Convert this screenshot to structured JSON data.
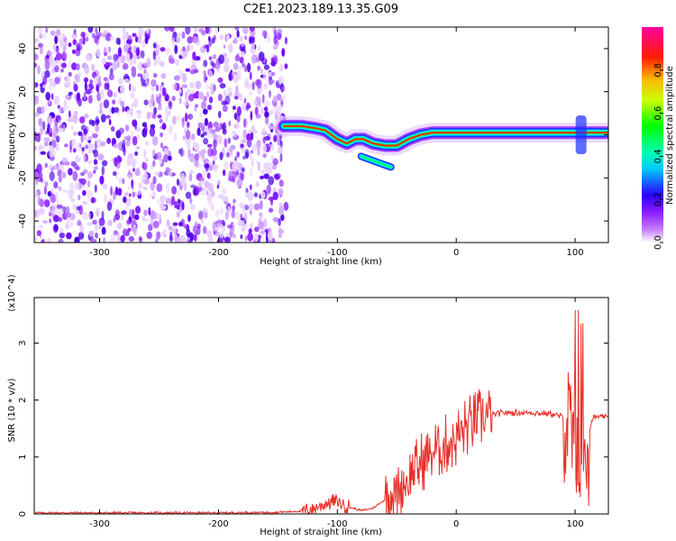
{
  "title": "C2E1.2023.189.13.35.G09",
  "chart_data": [
    {
      "type": "heatmap",
      "xlabel": "Height of straight line (km)",
      "ylabel": "Frequency (Hz)",
      "xlim": [
        -355,
        128
      ],
      "ylim": [
        -50,
        50
      ],
      "x_ticks": [
        -300,
        -200,
        -100,
        0,
        100
      ],
      "y_ticks": [
        -40,
        -20,
        0,
        20,
        40
      ],
      "colorbar": {
        "label": "Normalized spectral amplitude",
        "range": [
          0,
          1
        ],
        "ticks": [
          0.0,
          0.2,
          0.4,
          0.6,
          0.8
        ],
        "colormap": [
          "#ffffff",
          "#9b30ff",
          "#0000ff",
          "#00ffff",
          "#00ff00",
          "#ffff00",
          "#ff0000",
          "#ff00aa"
        ]
      },
      "noise_region": {
        "x": [
          -355,
          -143
        ],
        "freq": [
          -50,
          50
        ]
      },
      "frequency_track": [
        {
          "x": -145,
          "f": 4
        },
        {
          "x": -130,
          "f": 4
        },
        {
          "x": -118,
          "f": 3
        },
        {
          "x": -110,
          "f": 2
        },
        {
          "x": -100,
          "f": -2
        },
        {
          "x": -92,
          "f": -4
        },
        {
          "x": -85,
          "f": -2
        },
        {
          "x": -78,
          "f": -2
        },
        {
          "x": -70,
          "f": -4
        },
        {
          "x": -60,
          "f": -5
        },
        {
          "x": -50,
          "f": -5
        },
        {
          "x": -40,
          "f": -2
        },
        {
          "x": -30,
          "f": 0
        },
        {
          "x": -20,
          "f": 1
        },
        {
          "x": -10,
          "f": 1
        },
        {
          "x": 0,
          "f": 1
        },
        {
          "x": 20,
          "f": 1
        },
        {
          "x": 50,
          "f": 1
        },
        {
          "x": 80,
          "f": 1
        },
        {
          "x": 100,
          "f": 1
        },
        {
          "x": 110,
          "f": 1
        },
        {
          "x": 128,
          "f": 1
        }
      ],
      "secondary_track": [
        {
          "x": -80,
          "f": -10
        },
        {
          "x": -70,
          "f": -12
        },
        {
          "x": -60,
          "f": -14
        },
        {
          "x": -55,
          "f": -15
        }
      ]
    },
    {
      "type": "line",
      "xlabel": "Height of straight line (km)",
      "ylabel": "SNR (10 * v/v)",
      "y_scale_label": "(x10^4)",
      "xlim": [
        -355,
        128
      ],
      "ylim": [
        0,
        3.8
      ],
      "x_ticks": [
        -300,
        -200,
        -100,
        0,
        100
      ],
      "y_ticks": [
        0,
        1,
        2,
        3
      ],
      "color": "#e8302a",
      "series": [
        {
          "points": [
            {
              "x": -355,
              "y": 0.02
            },
            {
              "x": -300,
              "y": 0.02
            },
            {
              "x": -250,
              "y": 0.02
            },
            {
              "x": -200,
              "y": 0.02
            },
            {
              "x": -150,
              "y": 0.03
            },
            {
              "x": -130,
              "y": 0.05
            },
            {
              "x": -120,
              "y": 0.1
            },
            {
              "x": -110,
              "y": 0.18
            },
            {
              "x": -100,
              "y": 0.22
            },
            {
              "x": -90,
              "y": 0.12
            },
            {
              "x": -80,
              "y": 0.06
            },
            {
              "x": -70,
              "y": 0.1
            },
            {
              "x": -60,
              "y": 0.25
            },
            {
              "x": -50,
              "y": 0.4
            },
            {
              "x": -40,
              "y": 0.6
            },
            {
              "x": -30,
              "y": 0.9
            },
            {
              "x": -20,
              "y": 1.1
            },
            {
              "x": -10,
              "y": 1.2
            },
            {
              "x": 0,
              "y": 1.35
            },
            {
              "x": 10,
              "y": 1.55
            },
            {
              "x": 20,
              "y": 1.68
            },
            {
              "x": 30,
              "y": 1.74
            },
            {
              "x": 40,
              "y": 1.78
            },
            {
              "x": 60,
              "y": 1.78
            },
            {
              "x": 80,
              "y": 1.76
            },
            {
              "x": 90,
              "y": 1.7
            },
            {
              "x": 95,
              "y": 1.45
            },
            {
              "x": 100,
              "y": 1.2
            },
            {
              "x": 105,
              "y": 0.6
            },
            {
              "x": 110,
              "y": 1.3
            },
            {
              "x": 115,
              "y": 1.7
            },
            {
              "x": 128,
              "y": 1.7
            }
          ]
        }
      ]
    }
  ]
}
